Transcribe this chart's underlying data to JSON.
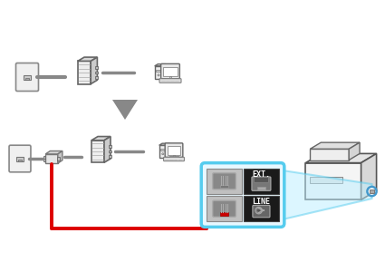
{
  "bg_color": "#ffffff",
  "arrow_color": "#888888",
  "red_cable_color": "#dd0000",
  "gray_cable_color": "#888888",
  "blue_zoom_color": "#55ccee",
  "panel_border": "#55ccee",
  "panel_bg": "#e8f8ff",
  "text_ext": "EXT.",
  "text_line": "LINE",
  "icon_bg_dark": "#1a1a1a",
  "icon_bg_light": "#cccccc"
}
